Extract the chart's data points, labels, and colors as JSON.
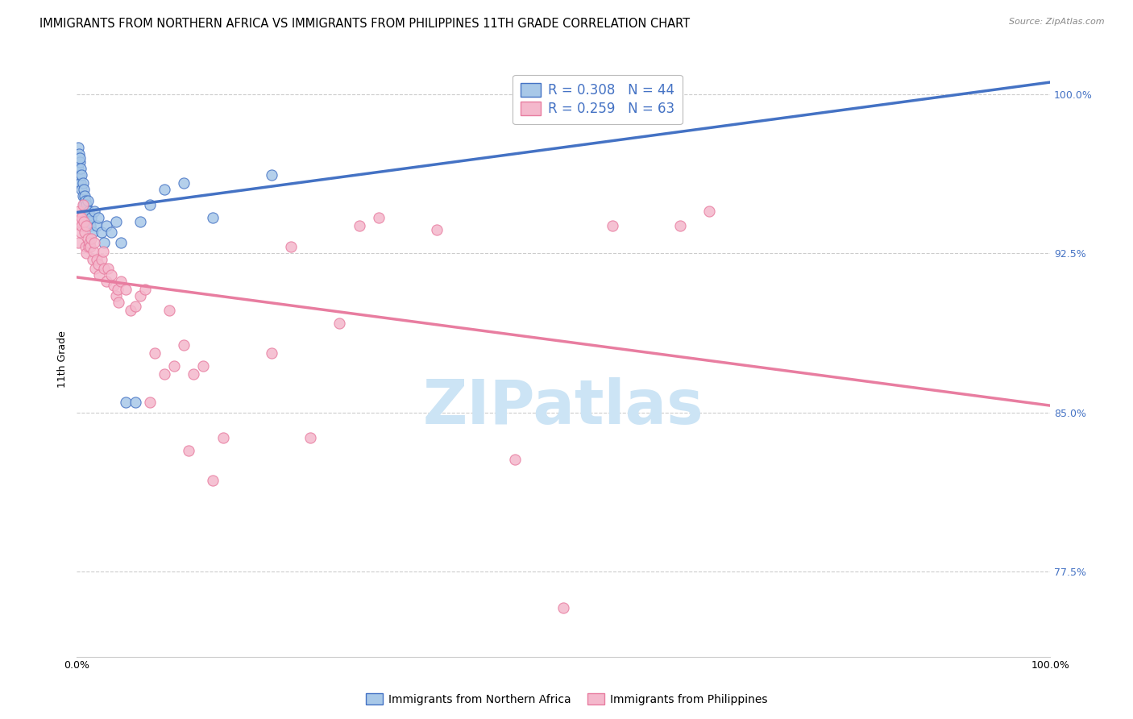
{
  "title": "IMMIGRANTS FROM NORTHERN AFRICA VS IMMIGRANTS FROM PHILIPPINES 11TH GRADE CORRELATION CHART",
  "source": "Source: ZipAtlas.com",
  "ylabel": "11th Grade",
  "legend_label1": "Immigrants from Northern Africa",
  "legend_label2": "Immigrants from Philippines",
  "r1": 0.308,
  "n1": 44,
  "r2": 0.259,
  "n2": 63,
  "color_blue": "#a8c8e8",
  "color_pink": "#f4b8cc",
  "line_color_blue": "#4472c4",
  "line_color_pink": "#e87da0",
  "ytick_labels": [
    "100.0%",
    "92.5%",
    "85.0%",
    "77.5%"
  ],
  "ytick_values": [
    1.0,
    0.925,
    0.85,
    0.775
  ],
  "blue_x": [
    0.001,
    0.001,
    0.002,
    0.002,
    0.003,
    0.003,
    0.003,
    0.004,
    0.004,
    0.005,
    0.005,
    0.006,
    0.006,
    0.007,
    0.007,
    0.008,
    0.008,
    0.009,
    0.01,
    0.01,
    0.011,
    0.012,
    0.013,
    0.014,
    0.015,
    0.016,
    0.018,
    0.02,
    0.022,
    0.025,
    0.028,
    0.03,
    0.035,
    0.04,
    0.045,
    0.05,
    0.06,
    0.065,
    0.075,
    0.09,
    0.11,
    0.14,
    0.2,
    0.55
  ],
  "blue_y": [
    0.975,
    0.965,
    0.972,
    0.96,
    0.968,
    0.962,
    0.97,
    0.958,
    0.965,
    0.955,
    0.962,
    0.958,
    0.952,
    0.955,
    0.948,
    0.952,
    0.945,
    0.95,
    0.948,
    0.942,
    0.95,
    0.945,
    0.94,
    0.938,
    0.942,
    0.935,
    0.945,
    0.938,
    0.942,
    0.935,
    0.93,
    0.938,
    0.935,
    0.94,
    0.93,
    0.855,
    0.855,
    0.94,
    0.948,
    0.955,
    0.958,
    0.942,
    0.962,
    1.0
  ],
  "pink_x": [
    0.001,
    0.002,
    0.003,
    0.004,
    0.005,
    0.005,
    0.006,
    0.007,
    0.008,
    0.009,
    0.01,
    0.01,
    0.011,
    0.012,
    0.013,
    0.014,
    0.015,
    0.016,
    0.017,
    0.018,
    0.019,
    0.02,
    0.022,
    0.023,
    0.025,
    0.027,
    0.028,
    0.03,
    0.032,
    0.035,
    0.038,
    0.04,
    0.042,
    0.043,
    0.045,
    0.05,
    0.055,
    0.06,
    0.065,
    0.07,
    0.075,
    0.08,
    0.09,
    0.095,
    0.1,
    0.11,
    0.115,
    0.12,
    0.13,
    0.14,
    0.15,
    0.2,
    0.22,
    0.24,
    0.27,
    0.29,
    0.31,
    0.37,
    0.45,
    0.5,
    0.55,
    0.62,
    0.65
  ],
  "pink_y": [
    0.93,
    0.945,
    0.94,
    0.935,
    0.938,
    0.942,
    0.948,
    0.94,
    0.935,
    0.928,
    0.938,
    0.925,
    0.932,
    0.928,
    0.93,
    0.928,
    0.932,
    0.922,
    0.926,
    0.93,
    0.918,
    0.922,
    0.92,
    0.915,
    0.922,
    0.926,
    0.918,
    0.912,
    0.918,
    0.915,
    0.91,
    0.905,
    0.908,
    0.902,
    0.912,
    0.908,
    0.898,
    0.9,
    0.905,
    0.908,
    0.855,
    0.878,
    0.868,
    0.898,
    0.872,
    0.882,
    0.832,
    0.868,
    0.872,
    0.818,
    0.838,
    0.878,
    0.928,
    0.838,
    0.892,
    0.938,
    0.942,
    0.936,
    0.828,
    0.758,
    0.938,
    0.938,
    0.945
  ],
  "xlim": [
    0.0,
    1.0
  ],
  "ylim": [
    0.735,
    1.015
  ],
  "blue_line_start_x": 0.0,
  "blue_line_end_x": 1.0,
  "pink_line_start_x": 0.0,
  "pink_line_end_x": 1.0,
  "title_fontsize": 10.5,
  "axis_fontsize": 9,
  "legend_fontsize": 12,
  "watermark": "ZIPatlas",
  "watermark_color": "#cce4f5",
  "watermark_fontsize": 55
}
